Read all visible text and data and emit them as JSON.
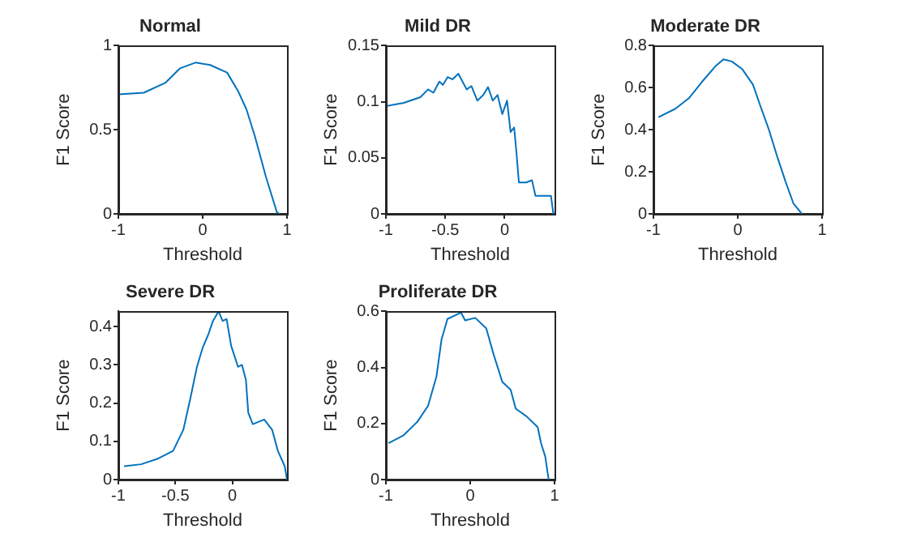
{
  "chart_data": [
    {
      "type": "line",
      "title": "Normal",
      "xlabel": "Threshold",
      "ylabel": "F1 Score",
      "xlim": [
        -1,
        1
      ],
      "ylim": [
        0,
        1
      ],
      "xticks": [
        -1,
        0,
        1
      ],
      "yticks": [
        0,
        0.5,
        1
      ],
      "grid": false,
      "legend": false,
      "marker": "none",
      "line_style": "solid",
      "series": [
        {
          "color": "#0072bd",
          "x": [
            -1,
            -0.7,
            -0.44,
            -0.27,
            -0.08,
            0.09,
            0.29,
            0.42,
            0.52,
            0.62,
            0.75,
            0.88,
            0.91
          ],
          "values": [
            0.71,
            0.72,
            0.78,
            0.865,
            0.9,
            0.885,
            0.84,
            0.73,
            0.62,
            0.46,
            0.22,
            0.01,
            0
          ]
        }
      ]
    },
    {
      "type": "line",
      "title": "Mild DR",
      "xlabel": "Threshold",
      "ylabel": "F1 Score",
      "xlim": [
        -1,
        0.42
      ],
      "ylim": [
        0,
        0.15
      ],
      "xticks": [
        -1,
        -0.5,
        0
      ],
      "yticks": [
        0,
        0.05,
        0.1,
        0.15
      ],
      "grid": false,
      "legend": false,
      "marker": "none",
      "line_style": "solid",
      "series": [
        {
          "color": "#0072bd",
          "x": [
            -1,
            -0.85,
            -0.71,
            -0.645,
            -0.6,
            -0.55,
            -0.52,
            -0.48,
            -0.44,
            -0.39,
            -0.36,
            -0.32,
            -0.28,
            -0.23,
            -0.18,
            -0.14,
            -0.1,
            -0.06,
            -0.02,
            0.02,
            0.05,
            0.08,
            0.1,
            0.12,
            0.18,
            0.23,
            0.26,
            0.39,
            0.41
          ],
          "values": [
            0.096,
            0.099,
            0.104,
            0.111,
            0.108,
            0.118,
            0.115,
            0.122,
            0.12,
            0.125,
            0.119,
            0.111,
            0.114,
            0.101,
            0.106,
            0.113,
            0.101,
            0.106,
            0.089,
            0.101,
            0.073,
            0.077,
            0.054,
            0.028,
            0.028,
            0.03,
            0.016,
            0.016,
            0
          ]
        }
      ]
    },
    {
      "type": "line",
      "title": "Moderate DR",
      "xlabel": "Threshold",
      "ylabel": "F1 Score",
      "xlim": [
        -1,
        1
      ],
      "ylim": [
        0,
        0.8
      ],
      "xticks": [
        -1,
        0,
        1
      ],
      "yticks": [
        0,
        0.2,
        0.4,
        0.6,
        0.8
      ],
      "grid": false,
      "legend": false,
      "marker": "none",
      "line_style": "solid",
      "series": [
        {
          "color": "#0072bd",
          "x": [
            -0.94,
            -0.74,
            -0.58,
            -0.42,
            -0.27,
            -0.17,
            -0.07,
            0.05,
            0.18,
            0.28,
            0.37,
            0.47,
            0.57,
            0.66,
            0.76
          ],
          "values": [
            0.46,
            0.5,
            0.55,
            0.63,
            0.7,
            0.735,
            0.725,
            0.69,
            0.615,
            0.5,
            0.4,
            0.27,
            0.15,
            0.05,
            0
          ]
        }
      ]
    },
    {
      "type": "line",
      "title": "Severe DR",
      "xlabel": "Threshold",
      "ylabel": "F1 Score",
      "xlim": [
        -1,
        0.48
      ],
      "ylim": [
        0,
        0.44
      ],
      "xticks": [
        -1,
        -0.5,
        0
      ],
      "yticks": [
        0,
        0.1,
        0.2,
        0.3,
        0.4
      ],
      "grid": false,
      "legend": false,
      "marker": "none",
      "line_style": "solid",
      "series": [
        {
          "color": "#0072bd",
          "x": [
            -0.95,
            -0.8,
            -0.66,
            -0.52,
            -0.43,
            -0.37,
            -0.31,
            -0.26,
            -0.21,
            -0.17,
            -0.12,
            -0.085,
            -0.05,
            -0.01,
            0.05,
            0.085,
            0.12,
            0.14,
            0.18,
            0.28,
            0.35,
            0.4,
            0.46,
            0.48
          ],
          "values": [
            0.035,
            0.04,
            0.054,
            0.075,
            0.13,
            0.21,
            0.295,
            0.345,
            0.38,
            0.415,
            0.44,
            0.415,
            0.42,
            0.35,
            0.295,
            0.3,
            0.26,
            0.175,
            0.145,
            0.157,
            0.13,
            0.075,
            0.035,
            0
          ]
        }
      ]
    },
    {
      "type": "line",
      "title": "Proliferate DR",
      "xlabel": "Threshold",
      "ylabel": "F1 Score",
      "xlim": [
        -1,
        1
      ],
      "ylim": [
        0,
        0.6
      ],
      "xticks": [
        -1,
        0,
        1
      ],
      "yticks": [
        0,
        0.2,
        0.4,
        0.6
      ],
      "grid": false,
      "legend": false,
      "marker": "none",
      "line_style": "solid",
      "series": [
        {
          "color": "#0072bd",
          "x": [
            -0.97,
            -0.79,
            -0.63,
            -0.5,
            -0.4,
            -0.34,
            -0.27,
            -0.17,
            -0.11,
            -0.06,
            0.06,
            0.19,
            0.28,
            0.38,
            0.48,
            0.54,
            0.67,
            0.8,
            0.84,
            0.89,
            0.93
          ],
          "values": [
            0.13,
            0.158,
            0.205,
            0.263,
            0.368,
            0.5,
            0.573,
            0.587,
            0.596,
            0.568,
            0.577,
            0.54,
            0.444,
            0.349,
            0.32,
            0.253,
            0.225,
            0.187,
            0.13,
            0.082,
            0
          ]
        }
      ]
    }
  ]
}
